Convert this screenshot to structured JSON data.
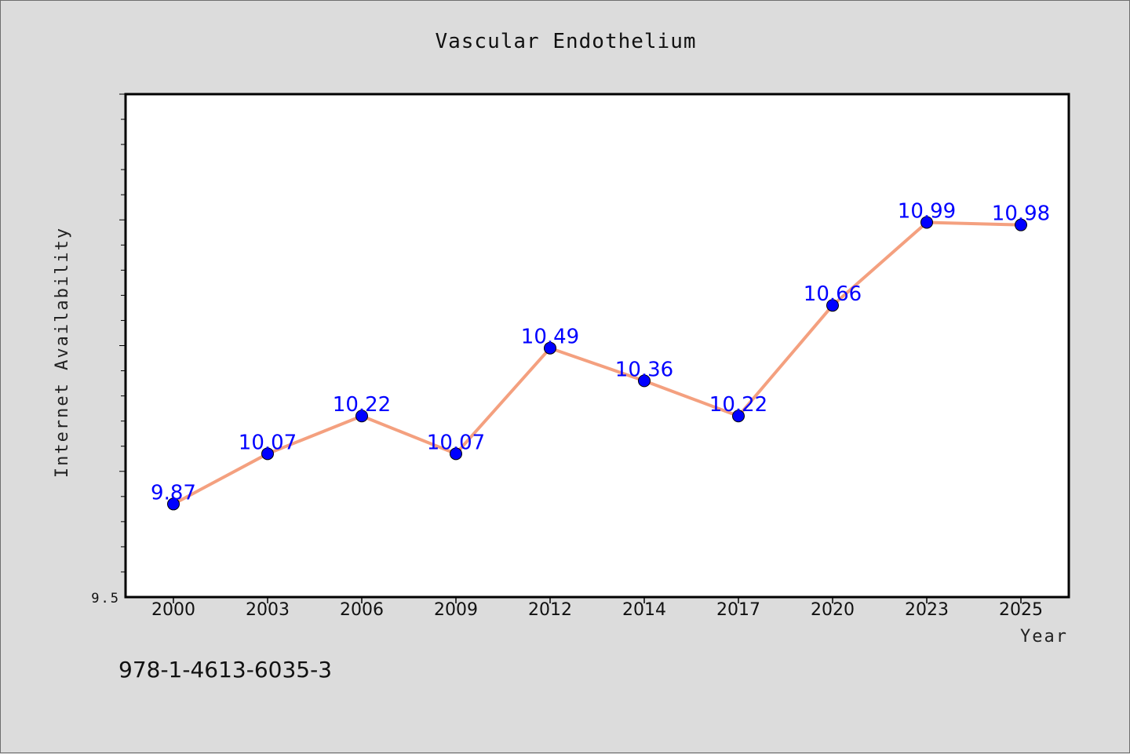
{
  "chart_data": {
    "type": "line",
    "title": "Vascular Endothelium",
    "xlabel": "Year",
    "ylabel": "Internet Availability",
    "categories": [
      "2000",
      "2003",
      "2006",
      "2009",
      "2012",
      "2014",
      "2017",
      "2020",
      "2023",
      "2025"
    ],
    "series": [
      {
        "values": [
          9.87,
          10.07,
          10.22,
          10.07,
          10.49,
          10.36,
          10.22,
          10.66,
          10.99,
          10.98
        ]
      }
    ],
    "data_labels": [
      "9.87",
      "10.07",
      "10.22",
      "10.07",
      "10.49",
      "10.36",
      "10.22",
      "10.66",
      "10.99",
      "10.98"
    ],
    "ylim": [
      9.5,
      11.5
    ],
    "y_tick_labels": [
      "9.5"
    ],
    "grid": false,
    "line_color": "#f4a07f",
    "marker_color": "#0000ff"
  },
  "footnote": "978-1-4613-6035-3"
}
